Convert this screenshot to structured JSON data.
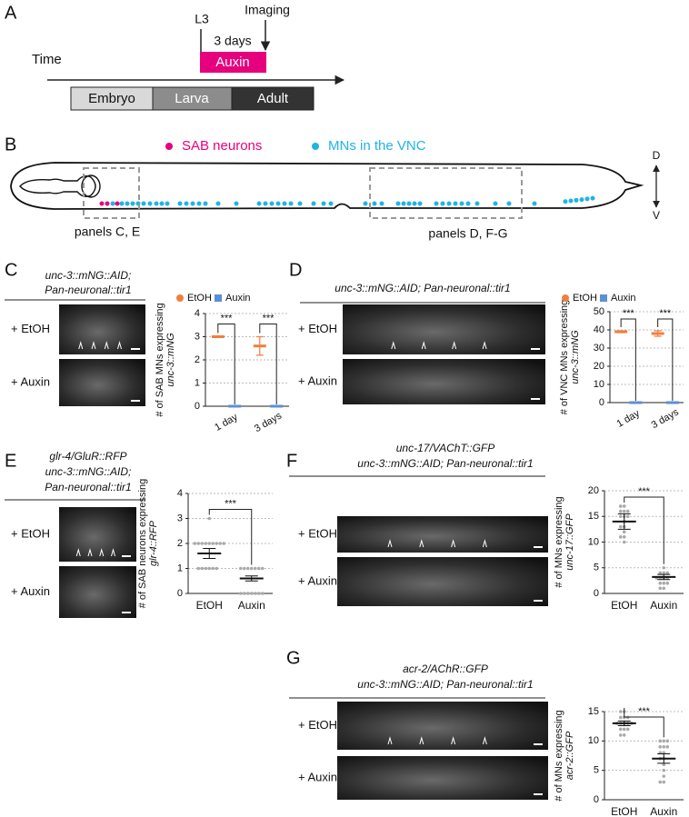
{
  "panels": {
    "A": {
      "letter": "A",
      "time": "Time",
      "l3": "L3",
      "three_days": "3 days",
      "imaging": "Imaging",
      "auxin": "Auxin",
      "stages": [
        "Embryo",
        "Larva",
        "Adult"
      ]
    },
    "B": {
      "letter": "B",
      "legend": [
        "SAB neurons",
        "MNs in the VNC"
      ],
      "dorsal": "D",
      "ventral": "V",
      "box_labels": [
        "panels C, E",
        "panels D, F-G"
      ]
    },
    "C": {
      "letter": "C",
      "genotype": [
        "unc-3::mNG::AID;",
        "Pan-neuronal::tir1"
      ],
      "conditions": [
        "+ EtOH",
        "+ Auxin"
      ]
    },
    "D": {
      "letter": "D",
      "genotype": [
        "unc-3::mNG::AID; Pan-neuronal::tir1"
      ],
      "conditions": [
        "+ EtOH",
        "+ Auxin"
      ]
    },
    "E": {
      "letter": "E",
      "genotype": [
        "glr-4/GluR::RFP",
        "unc-3::mNG::AID;",
        "Pan-neuronal::tir1"
      ],
      "conditions": [
        "+ EtOH",
        "+ Auxin"
      ]
    },
    "F": {
      "letter": "F",
      "genotype": [
        "unc-17/VAChT::GFP",
        "unc-3::mNG::AID; Pan-neuronal::tir1"
      ],
      "conditions": [
        "+ EtOH",
        "+ Auxin"
      ]
    },
    "G": {
      "letter": "G",
      "genotype": [
        "acr-2/AChR::GFP",
        "unc-3::mNG::AID; Pan-neuronal::tir1"
      ],
      "conditions": [
        "+ EtOH",
        "+ Auxin"
      ]
    }
  },
  "chart_data": [
    {
      "type": "meanplot",
      "ylabel": [
        "# of SAB MNs expressing",
        "unc-3::mNG"
      ],
      "categories": [
        "1 day",
        "3 days"
      ],
      "series": [
        {
          "name": "EtOH",
          "color": "#f07f3c",
          "values": [
            3,
            2.6
          ],
          "errors": [
            0,
            0.4
          ]
        },
        {
          "name": "Auxin",
          "color": "#5b8fd6",
          "values": [
            0,
            0
          ],
          "errors": [
            0,
            0
          ]
        }
      ],
      "ylim": [
        0,
        4
      ],
      "yticks": [
        0,
        1,
        2,
        3,
        4
      ],
      "grid": true,
      "significance": "***"
    },
    {
      "type": "meanplot",
      "ylabel": [
        "# of VNC MNs expressing",
        "unc-3::mNG"
      ],
      "categories": [
        "1 day",
        "3 days"
      ],
      "series": [
        {
          "name": "EtOH",
          "color": "#f07f3c",
          "values": [
            39,
            38
          ],
          "errors": [
            0.5,
            1.5
          ]
        },
        {
          "name": "Auxin",
          "color": "#5b8fd6",
          "values": [
            0,
            0
          ],
          "errors": [
            0,
            0
          ]
        }
      ],
      "ylim": [
        0,
        50
      ],
      "yticks": [
        0,
        10,
        20,
        30,
        40,
        50
      ],
      "grid": true,
      "significance": "***"
    },
    {
      "type": "dotplot",
      "ylabel": [
        "# of SAB neurons expressing",
        "glr-4::RFP"
      ],
      "categories": [
        "EtOH",
        "Auxin"
      ],
      "values": [
        1.6,
        0.6
      ],
      "errors": [
        0.2,
        0.1
      ],
      "color": "#aaaaaa",
      "points": [
        [
          3,
          2,
          2,
          2,
          2,
          2,
          2,
          2,
          2,
          2,
          1,
          1,
          1,
          1,
          1,
          1
        ],
        [
          1,
          1,
          1,
          1,
          1,
          1,
          1,
          0,
          0,
          0,
          0,
          0,
          0,
          0
        ]
      ],
      "ylim": [
        0,
        4
      ],
      "yticks": [
        0,
        1,
        2,
        3,
        4
      ],
      "grid": true,
      "significance": "***"
    },
    {
      "type": "dotplot",
      "ylabel": [
        "# of MNs expressing",
        "unc-17::GFP"
      ],
      "categories": [
        "EtOH",
        "Auxin"
      ],
      "values": [
        14,
        3.2
      ],
      "errors": [
        1.5,
        0.5
      ],
      "color": "#aaaaaa",
      "points": [
        [
          17,
          17,
          16,
          16,
          16,
          15,
          15,
          15,
          14,
          13,
          13,
          12,
          11,
          11,
          10
        ],
        [
          5,
          4,
          4,
          4,
          3,
          3,
          3,
          3,
          2,
          2,
          2,
          1,
          1
        ]
      ],
      "ylim": [
        0,
        20
      ],
      "yticks": [
        0,
        5,
        10,
        15,
        20
      ],
      "grid": true,
      "significance": "***"
    },
    {
      "type": "dotplot",
      "ylabel": [
        "# of MNs expressing",
        "acr-2::GFP"
      ],
      "categories": [
        "EtOH",
        "Auxin"
      ],
      "values": [
        13,
        7
      ],
      "errors": [
        0.4,
        0.8
      ],
      "color": "#aaaaaa",
      "points": [
        [
          15,
          15,
          14,
          14,
          14,
          13,
          13,
          13,
          13,
          13,
          12,
          12,
          12,
          11,
          11
        ],
        [
          10,
          10,
          10,
          9,
          9,
          9,
          8,
          8,
          7,
          7,
          6,
          5,
          4,
          3,
          3
        ]
      ],
      "ylim": [
        0,
        15
      ],
      "yticks": [
        0,
        5,
        10,
        15
      ],
      "grid": true,
      "significance": "***"
    }
  ]
}
